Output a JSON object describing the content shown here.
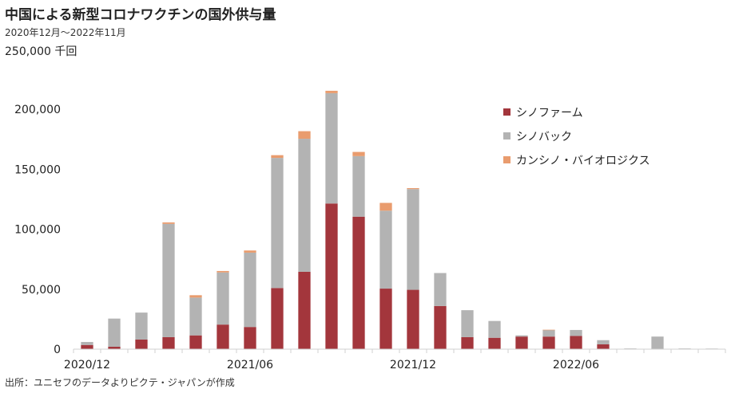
{
  "title": "中国による新型コロナワクチンの国外供与量",
  "subtitle": "2020年12月～2022年11月",
  "unit_label": "250,000 千回",
  "source": "出所：ユニセフのデータよりピクテ・ジャパンが作成",
  "chart_data": {
    "type": "bar",
    "stacked": true,
    "categories": [
      "2020/12",
      "2021/01",
      "2021/02",
      "2021/03",
      "2021/04",
      "2021/05",
      "2021/06",
      "2021/07",
      "2021/08",
      "2021/09",
      "2021/10",
      "2021/11",
      "2021/12",
      "2022/01",
      "2022/02",
      "2022/03",
      "2022/04",
      "2022/05",
      "2022/06",
      "2022/07",
      "2022/08",
      "2022/09",
      "2022/10",
      "2022/11"
    ],
    "category_labels": [
      "2020/12",
      "",
      "",
      "",
      "",
      "",
      "2021/06",
      "",
      "",
      "",
      "",
      "",
      "2021/12",
      "",
      "",
      "",
      "",
      "",
      "2022/06",
      "",
      "",
      "",
      "",
      ""
    ],
    "series": [
      {
        "name": "シノファーム",
        "color": "#a3363c",
        "values": [
          3500,
          2000,
          8000,
          10000,
          11500,
          20500,
          18500,
          51000,
          64500,
          121500,
          110500,
          50500,
          49500,
          36000,
          10000,
          9500,
          10500,
          10500,
          11000,
          4000,
          0,
          0,
          0,
          0
        ]
      },
      {
        "name": "シノバック",
        "color": "#b3b3b3",
        "values": [
          2500,
          23500,
          22500,
          94500,
          31500,
          43500,
          62000,
          108500,
          111000,
          92000,
          50500,
          65000,
          84000,
          27500,
          22500,
          14000,
          1000,
          5500,
          5000,
          3500,
          600,
          10500,
          600,
          500
        ]
      },
      {
        "name": "カンシノ・バイオロジクス",
        "color": "#e99c6e",
        "values": [
          0,
          0,
          0,
          1200,
          2000,
          1200,
          1800,
          2300,
          6300,
          2000,
          3500,
          6500,
          800,
          0,
          0,
          0,
          0,
          200,
          0,
          0,
          0,
          0,
          0,
          0
        ]
      }
    ],
    "yticks": [
      "0",
      "50,000",
      "100,000",
      "150,000",
      "200,000"
    ],
    "ylim": [
      0,
      250000
    ],
    "legend_position": "top-right",
    "grid": false
  }
}
